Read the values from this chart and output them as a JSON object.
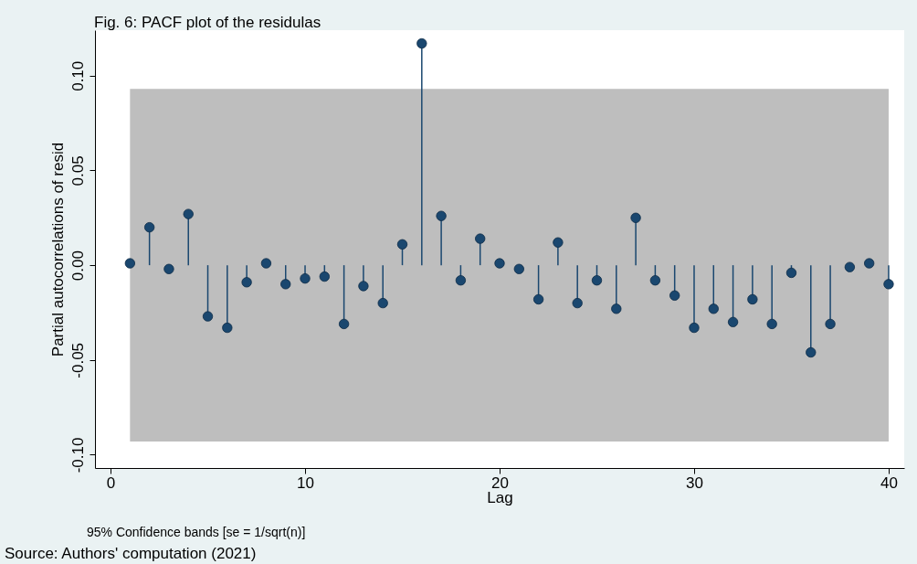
{
  "chart_data": {
    "type": "lollipop",
    "title": "Fig. 6: PACF plot of the residulas",
    "xlabel": "Lag",
    "ylabel": "Partial autocorrelations of resid",
    "x": [
      1,
      2,
      3,
      4,
      5,
      6,
      7,
      8,
      9,
      10,
      11,
      12,
      13,
      14,
      15,
      16,
      17,
      18,
      19,
      20,
      21,
      22,
      23,
      24,
      25,
      26,
      27,
      28,
      29,
      30,
      31,
      32,
      33,
      34,
      35,
      36,
      37,
      38,
      39,
      40
    ],
    "values": [
      0.001,
      0.02,
      -0.002,
      0.027,
      -0.027,
      -0.033,
      -0.009,
      0.001,
      -0.01,
      -0.007,
      -0.006,
      -0.031,
      -0.011,
      -0.02,
      0.011,
      0.117,
      0.026,
      -0.008,
      0.014,
      0.001,
      -0.002,
      -0.018,
      0.012,
      -0.02,
      -0.008,
      -0.023,
      0.025,
      -0.008,
      -0.016,
      -0.033,
      -0.023,
      -0.03,
      -0.018,
      -0.031,
      -0.004,
      -0.046,
      -0.031,
      -0.001,
      0.001,
      -0.01
    ],
    "color": "#1a476f",
    "marker": "circle",
    "grid": false,
    "xlim": [
      -0.8,
      40.8
    ],
    "ylim": [
      -0.107,
      0.124
    ],
    "xticks": [
      0,
      10,
      20,
      30,
      40
    ],
    "yticks": [
      {
        "value": -0.1,
        "label": "-0.10"
      },
      {
        "value": -0.05,
        "label": "-0.05"
      },
      {
        "value": 0,
        "label": "0.00"
      },
      {
        "value": 0.05,
        "label": "0.05"
      },
      {
        "value": 0.1,
        "label": "0.10"
      }
    ],
    "bands": [
      {
        "axis": "y",
        "from": -0.093,
        "to": 0.093,
        "color": "#bebebe"
      }
    ],
    "annotations": [
      "95% Confidence bands [se = 1/sqrt(n)]",
      "Source: Authors' computation (2021)"
    ]
  }
}
